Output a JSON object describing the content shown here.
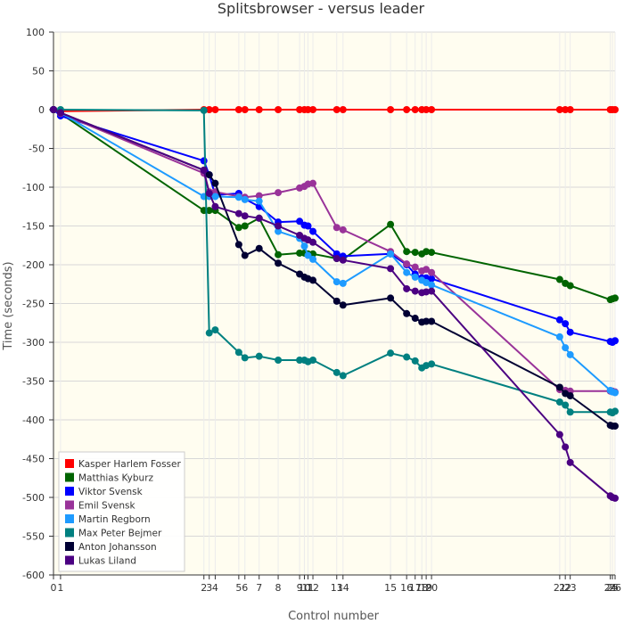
{
  "chart_data": {
    "type": "line",
    "title": "Splitsbrowser - versus leader",
    "xlabel": "Control number",
    "ylabel": "Time (seconds)",
    "ylim": [
      -600,
      100
    ],
    "yticks": [
      100,
      50,
      0,
      -50,
      -100,
      -150,
      -200,
      -250,
      -300,
      -350,
      -400,
      -450,
      -500,
      -550,
      -600
    ],
    "controls": [
      "0",
      "1",
      "2",
      "3",
      "4",
      "5",
      "6",
      "7",
      "8",
      "9",
      "10",
      "11",
      "12",
      "13",
      "14",
      "15",
      "16",
      "17",
      "18",
      "19",
      "20",
      "21",
      "22",
      "23",
      "24",
      "25",
      "26"
    ],
    "control_times": [
      0,
      53,
      1130,
      1170,
      1215,
      1392,
      1438,
      1545,
      1688,
      1849,
      1885,
      1912,
      1949,
      2128,
      2175,
      2532,
      2653,
      2717,
      2767,
      2800,
      2840,
      3803,
      3845,
      3882,
      4183,
      4199,
      4219
    ],
    "legend_placement": "bottom-left",
    "grid": true,
    "series": [
      {
        "name": "Kasper Harlem Fosser",
        "color": "#ff0000",
        "values": [
          0,
          -2,
          0,
          0,
          0,
          0,
          0,
          0,
          0,
          0,
          0,
          0,
          0,
          0,
          0,
          0,
          0,
          0,
          0,
          0,
          0,
          0,
          0,
          0,
          0,
          0,
          0
        ]
      },
      {
        "name": "Matthias Kyburz",
        "color": "#006400",
        "values": [
          0,
          -5,
          -130,
          -130,
          -130,
          -152,
          -150,
          -140,
          -187,
          -185,
          -185,
          -186,
          -186,
          -192,
          -193,
          -148,
          -183,
          -184,
          -186,
          -183,
          -184,
          -219,
          -224,
          -227,
          -245,
          -244,
          -243
        ]
      },
      {
        "name": "Viktor Svensk",
        "color": "#0000ff",
        "values": [
          0,
          -8,
          -66,
          -84,
          -110,
          -108,
          -115,
          -125,
          -145,
          -144,
          -149,
          -150,
          -157,
          -186,
          -189,
          -186,
          -200,
          -212,
          -217,
          -217,
          -218,
          -271,
          -276,
          -287,
          -299,
          -300,
          -298
        ]
      },
      {
        "name": "Emil Svensk",
        "color": "#993399",
        "values": [
          0,
          -5,
          -82,
          -106,
          -106,
          -112,
          -113,
          -111,
          -107,
          -101,
          -99,
          -96,
          -95,
          -152,
          -155,
          -183,
          -199,
          -203,
          -208,
          -206,
          -210,
          -361,
          -362,
          -363,
          -363,
          -363,
          -364
        ]
      },
      {
        "name": "Martin Regborn",
        "color": "#1e9bff",
        "values": [
          0,
          -4,
          -112,
          -112,
          -112,
          -113,
          -116,
          -118,
          -157,
          -166,
          -176,
          -188,
          -193,
          -222,
          -224,
          -186,
          -210,
          -216,
          -220,
          -223,
          -226,
          -293,
          -307,
          -316,
          -362,
          -364,
          -365
        ]
      },
      {
        "name": "Max Peter Bejmer",
        "color": "#008080",
        "values": [
          0,
          0,
          -1,
          -288,
          -284,
          -313,
          -320,
          -318,
          -323,
          -323,
          -323,
          -325,
          -323,
          -339,
          -343,
          -314,
          -319,
          -324,
          -333,
          -330,
          -328,
          -377,
          -381,
          -390,
          -390,
          -391,
          -389
        ]
      },
      {
        "name": "Anton Johansson",
        "color": "#000033",
        "values": [
          0,
          -4,
          -78,
          -84,
          -95,
          -174,
          -188,
          -179,
          -198,
          -212,
          -216,
          -218,
          -220,
          -247,
          -252,
          -243,
          -263,
          -269,
          -274,
          -273,
          -273,
          -358,
          -366,
          -369,
          -407,
          -408,
          -408
        ]
      },
      {
        "name": "Lukas Liland",
        "color": "#4b0082",
        "values": [
          0,
          -4,
          -78,
          -108,
          -125,
          -134,
          -137,
          -140,
          -150,
          -162,
          -166,
          -168,
          -171,
          -192,
          -194,
          -205,
          -231,
          -234,
          -236,
          -235,
          -234,
          -419,
          -435,
          -455,
          -498,
          -500,
          -501
        ]
      }
    ]
  }
}
